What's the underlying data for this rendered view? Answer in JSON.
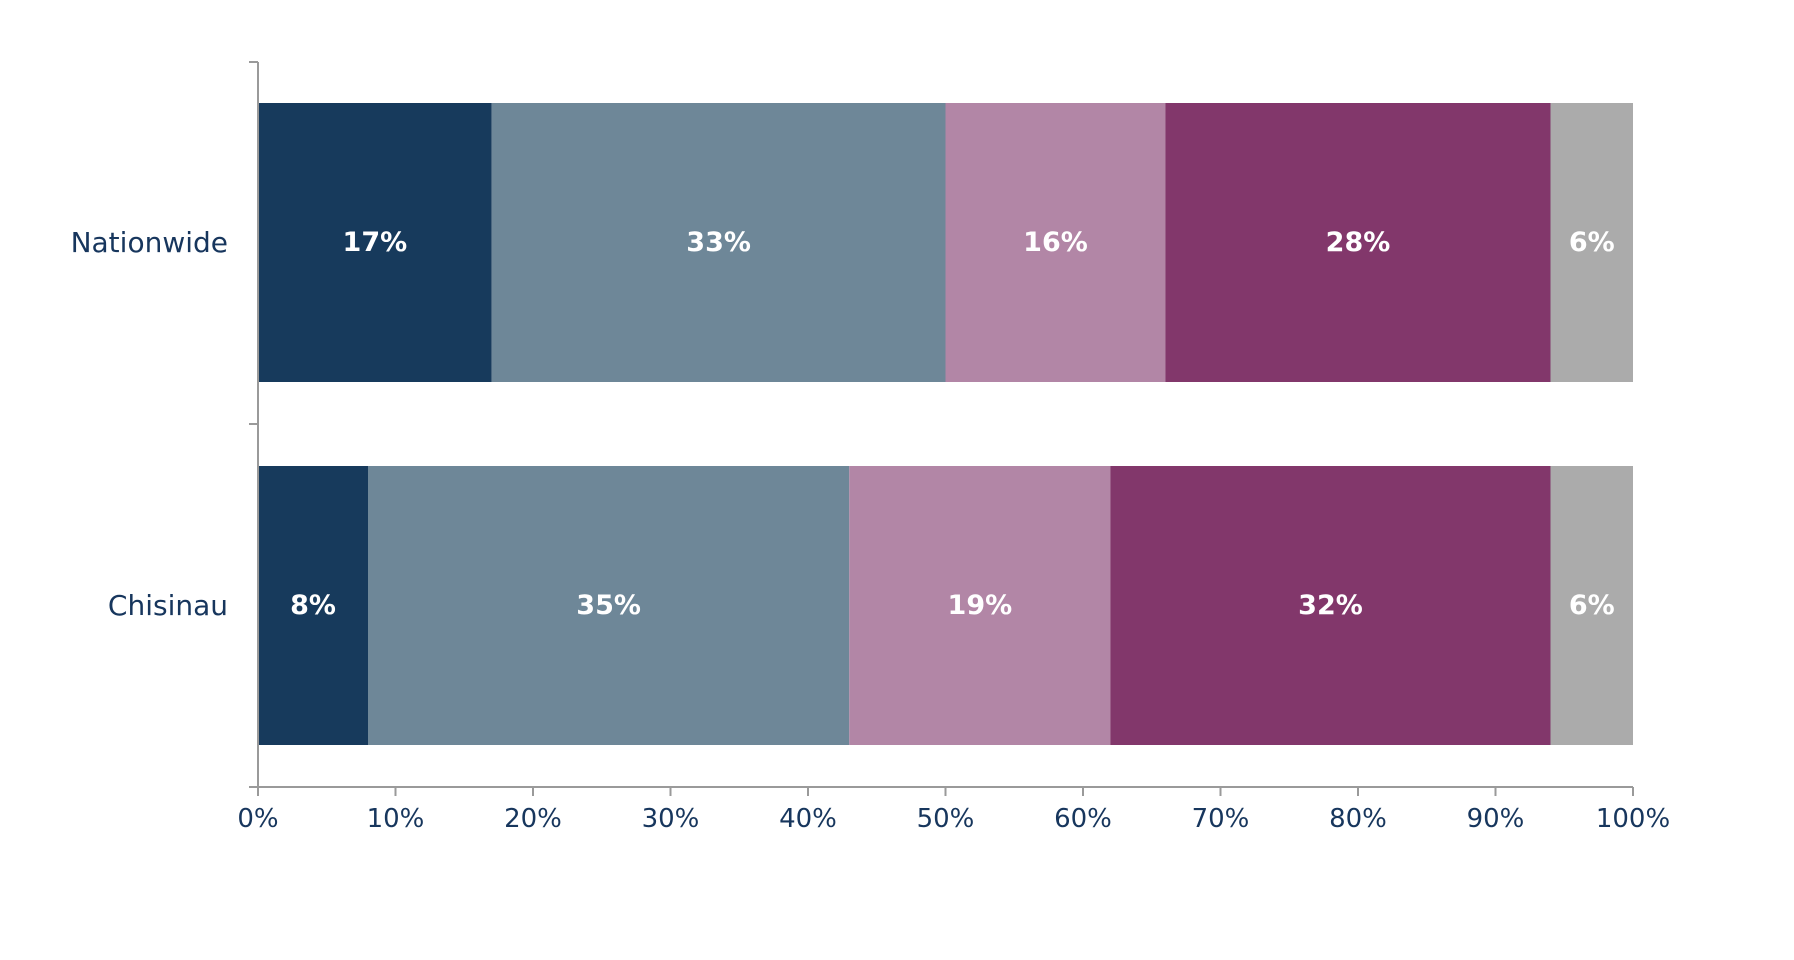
{
  "chart_data": {
    "type": "bar",
    "orientation": "horizontal",
    "stacked": true,
    "categories": [
      "Nationwide",
      "Chisinau"
    ],
    "series": [
      {
        "values": [
          17,
          8
        ],
        "labels": [
          "17%",
          "8%"
        ],
        "color": "#173a5c"
      },
      {
        "values": [
          33,
          35
        ],
        "labels": [
          "33%",
          "35%"
        ],
        "color": "#6e8798"
      },
      {
        "values": [
          16,
          19
        ],
        "labels": [
          "16%",
          "19%"
        ],
        "color": "#b286a6"
      },
      {
        "values": [
          28,
          32
        ],
        "labels": [
          "28%",
          "32%"
        ],
        "color": "#82376b"
      },
      {
        "values": [
          6,
          6
        ],
        "labels": [
          "6%",
          "6%"
        ],
        "color": "#ababab"
      }
    ],
    "xlim": [
      0,
      100
    ],
    "xticks": [
      "0%",
      "10%",
      "20%",
      "30%",
      "40%",
      "50%",
      "60%",
      "70%",
      "80%",
      "90%",
      "100%"
    ],
    "grid": false,
    "legend": "none",
    "title": "",
    "xlabel": "",
    "ylabel": ""
  }
}
